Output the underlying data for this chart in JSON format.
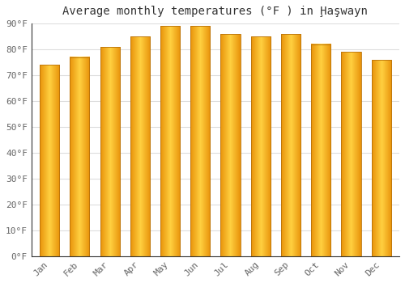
{
  "title": "Average monthly temperatures (°F ) in Ḩaşwayn",
  "months": [
    "Jan",
    "Feb",
    "Mar",
    "Apr",
    "May",
    "Jun",
    "Jul",
    "Aug",
    "Sep",
    "Oct",
    "Nov",
    "Dec"
  ],
  "values": [
    74,
    77,
    81,
    85,
    89,
    89,
    86,
    85,
    86,
    82,
    79,
    76
  ],
  "bar_color_edge": "#E8920A",
  "bar_color_center": "#FFD040",
  "bar_border_color": "#B8720A",
  "background_color": "#ffffff",
  "ylim": [
    0,
    90
  ],
  "yticks": [
    0,
    10,
    20,
    30,
    40,
    50,
    60,
    70,
    80,
    90
  ],
  "ylabel_suffix": "°F",
  "title_fontsize": 10,
  "tick_fontsize": 8,
  "grid_color": "#dddddd",
  "bar_width": 0.65
}
